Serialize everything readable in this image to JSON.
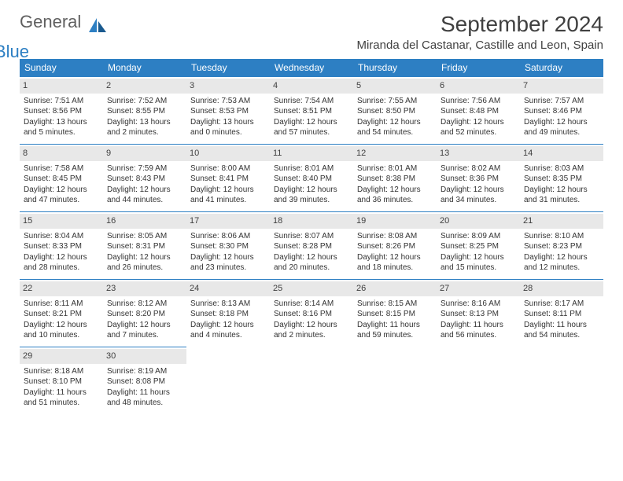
{
  "logo": {
    "text1": "General",
    "text2": "Blue"
  },
  "title": "September 2024",
  "location": "Miranda del Castanar, Castille and Leon, Spain",
  "colors": {
    "header_bg": "#2d7fc3",
    "header_text": "#ffffff",
    "daynum_bg": "#e8e8e8",
    "border": "#2d7fc3",
    "text": "#333333",
    "logo_gray": "#606060",
    "logo_blue": "#2d7fc3"
  },
  "day_headers": [
    "Sunday",
    "Monday",
    "Tuesday",
    "Wednesday",
    "Thursday",
    "Friday",
    "Saturday"
  ],
  "days": [
    {
      "n": "1",
      "sunrise": "7:51 AM",
      "sunset": "8:56 PM",
      "daylight": "13 hours and 5 minutes."
    },
    {
      "n": "2",
      "sunrise": "7:52 AM",
      "sunset": "8:55 PM",
      "daylight": "13 hours and 2 minutes."
    },
    {
      "n": "3",
      "sunrise": "7:53 AM",
      "sunset": "8:53 PM",
      "daylight": "13 hours and 0 minutes."
    },
    {
      "n": "4",
      "sunrise": "7:54 AM",
      "sunset": "8:51 PM",
      "daylight": "12 hours and 57 minutes."
    },
    {
      "n": "5",
      "sunrise": "7:55 AM",
      "sunset": "8:50 PM",
      "daylight": "12 hours and 54 minutes."
    },
    {
      "n": "6",
      "sunrise": "7:56 AM",
      "sunset": "8:48 PM",
      "daylight": "12 hours and 52 minutes."
    },
    {
      "n": "7",
      "sunrise": "7:57 AM",
      "sunset": "8:46 PM",
      "daylight": "12 hours and 49 minutes."
    },
    {
      "n": "8",
      "sunrise": "7:58 AM",
      "sunset": "8:45 PM",
      "daylight": "12 hours and 47 minutes."
    },
    {
      "n": "9",
      "sunrise": "7:59 AM",
      "sunset": "8:43 PM",
      "daylight": "12 hours and 44 minutes."
    },
    {
      "n": "10",
      "sunrise": "8:00 AM",
      "sunset": "8:41 PM",
      "daylight": "12 hours and 41 minutes."
    },
    {
      "n": "11",
      "sunrise": "8:01 AM",
      "sunset": "8:40 PM",
      "daylight": "12 hours and 39 minutes."
    },
    {
      "n": "12",
      "sunrise": "8:01 AM",
      "sunset": "8:38 PM",
      "daylight": "12 hours and 36 minutes."
    },
    {
      "n": "13",
      "sunrise": "8:02 AM",
      "sunset": "8:36 PM",
      "daylight": "12 hours and 34 minutes."
    },
    {
      "n": "14",
      "sunrise": "8:03 AM",
      "sunset": "8:35 PM",
      "daylight": "12 hours and 31 minutes."
    },
    {
      "n": "15",
      "sunrise": "8:04 AM",
      "sunset": "8:33 PM",
      "daylight": "12 hours and 28 minutes."
    },
    {
      "n": "16",
      "sunrise": "8:05 AM",
      "sunset": "8:31 PM",
      "daylight": "12 hours and 26 minutes."
    },
    {
      "n": "17",
      "sunrise": "8:06 AM",
      "sunset": "8:30 PM",
      "daylight": "12 hours and 23 minutes."
    },
    {
      "n": "18",
      "sunrise": "8:07 AM",
      "sunset": "8:28 PM",
      "daylight": "12 hours and 20 minutes."
    },
    {
      "n": "19",
      "sunrise": "8:08 AM",
      "sunset": "8:26 PM",
      "daylight": "12 hours and 18 minutes."
    },
    {
      "n": "20",
      "sunrise": "8:09 AM",
      "sunset": "8:25 PM",
      "daylight": "12 hours and 15 minutes."
    },
    {
      "n": "21",
      "sunrise": "8:10 AM",
      "sunset": "8:23 PM",
      "daylight": "12 hours and 12 minutes."
    },
    {
      "n": "22",
      "sunrise": "8:11 AM",
      "sunset": "8:21 PM",
      "daylight": "12 hours and 10 minutes."
    },
    {
      "n": "23",
      "sunrise": "8:12 AM",
      "sunset": "8:20 PM",
      "daylight": "12 hours and 7 minutes."
    },
    {
      "n": "24",
      "sunrise": "8:13 AM",
      "sunset": "8:18 PM",
      "daylight": "12 hours and 4 minutes."
    },
    {
      "n": "25",
      "sunrise": "8:14 AM",
      "sunset": "8:16 PM",
      "daylight": "12 hours and 2 minutes."
    },
    {
      "n": "26",
      "sunrise": "8:15 AM",
      "sunset": "8:15 PM",
      "daylight": "11 hours and 59 minutes."
    },
    {
      "n": "27",
      "sunrise": "8:16 AM",
      "sunset": "8:13 PM",
      "daylight": "11 hours and 56 minutes."
    },
    {
      "n": "28",
      "sunrise": "8:17 AM",
      "sunset": "8:11 PM",
      "daylight": "11 hours and 54 minutes."
    },
    {
      "n": "29",
      "sunrise": "8:18 AM",
      "sunset": "8:10 PM",
      "daylight": "11 hours and 51 minutes."
    },
    {
      "n": "30",
      "sunrise": "8:19 AM",
      "sunset": "8:08 PM",
      "daylight": "11 hours and 48 minutes."
    }
  ],
  "labels": {
    "sunrise": "Sunrise:",
    "sunset": "Sunset:",
    "daylight": "Daylight:"
  },
  "layout": {
    "start_weekday": 0,
    "total_days": 30,
    "columns": 7
  }
}
